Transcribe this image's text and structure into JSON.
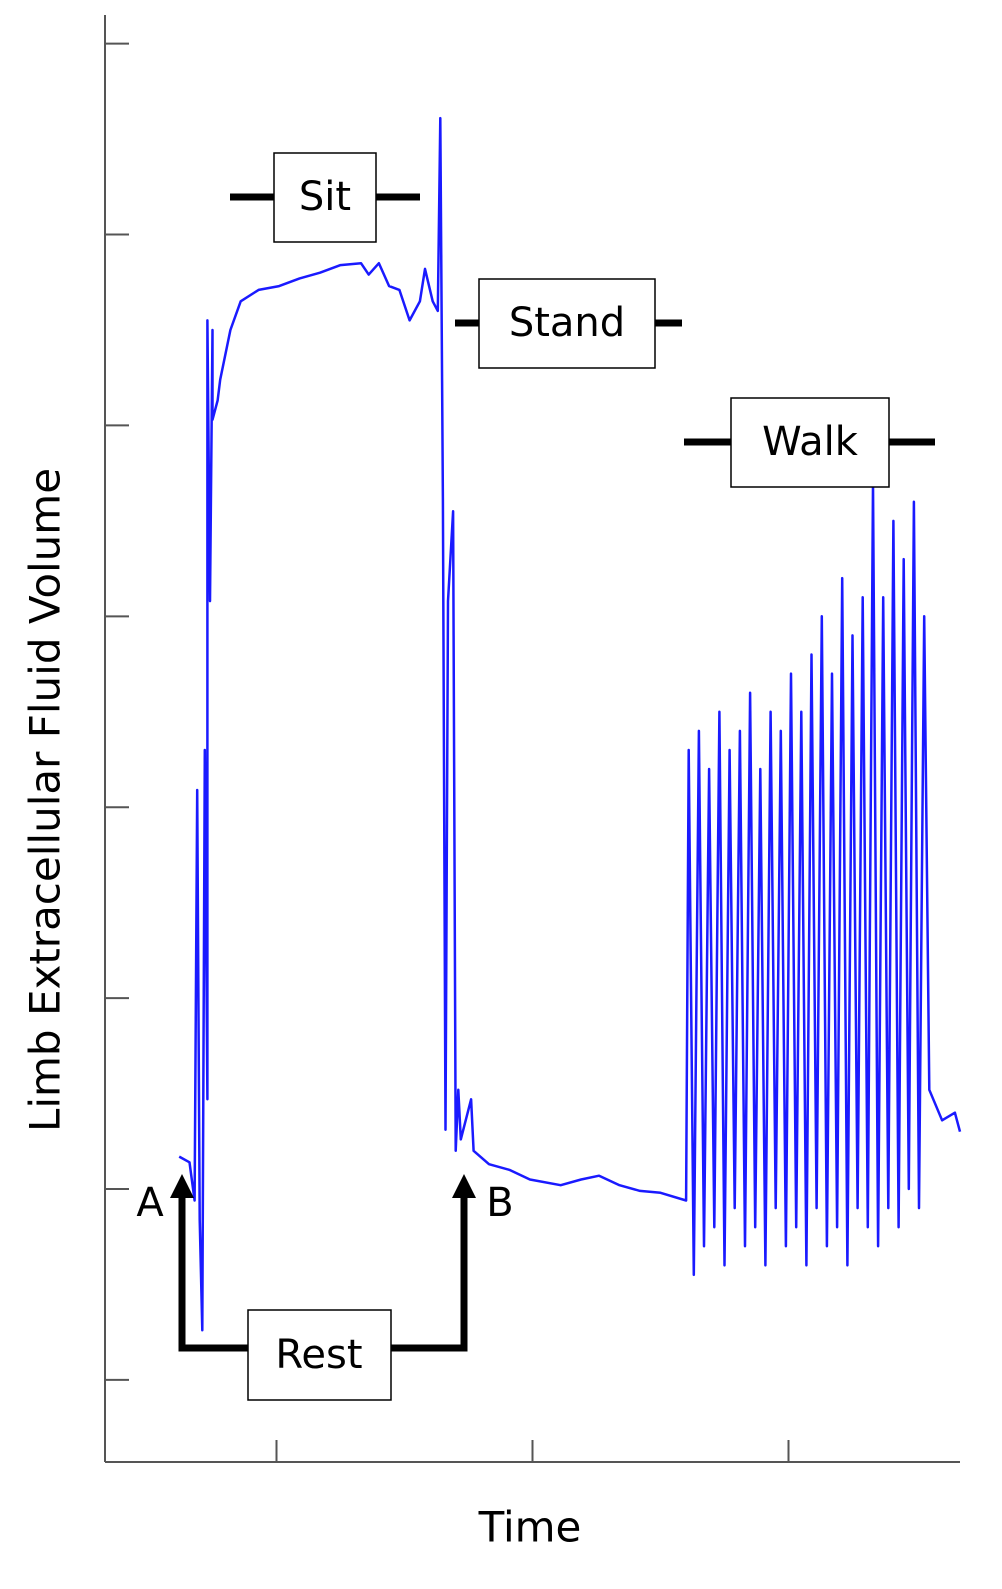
{
  "chart_data": {
    "type": "line",
    "x_label": "Time",
    "y_label": "Limb Extracellular Fluid Volume",
    "annotations": [
      "Sit",
      "Stand",
      "Walk",
      "Rest",
      "A",
      "B"
    ],
    "xlim": [
      0.33,
      3.67
    ],
    "xticks": [
      1,
      2,
      3
    ],
    "ylim": [
      -0.43,
      7.15
    ],
    "yticks": [
      0,
      1,
      2,
      3,
      4,
      5,
      6,
      7
    ],
    "series": [
      {
        "color": "#1a1aff",
        "x": [
          0.62,
          0.66,
          0.68,
          0.69,
          0.7,
          0.71,
          0.72,
          0.73,
          0.73,
          0.74,
          0.75,
          0.75,
          0.77,
          0.78,
          0.82,
          0.86,
          0.93,
          1.01,
          1.09,
          1.17,
          1.25,
          1.33,
          1.36,
          1.4,
          1.44,
          1.48,
          1.52,
          1.56,
          1.58,
          1.61,
          1.63,
          1.64,
          1.65,
          1.66,
          1.67,
          1.69,
          1.7,
          1.71,
          1.72,
          1.76,
          1.77,
          1.83,
          1.91,
          1.99,
          2.11,
          2.19,
          2.26,
          2.34,
          2.42,
          2.5,
          2.6,
          2.61,
          2.63,
          2.65,
          2.67,
          2.69,
          2.71,
          2.73,
          2.75,
          2.77,
          2.79,
          2.81,
          2.83,
          2.85,
          2.87,
          2.89,
          2.91,
          2.93,
          2.95,
          2.97,
          2.99,
          3.01,
          3.03,
          3.05,
          3.07,
          3.09,
          3.11,
          3.13,
          3.15,
          3.17,
          3.19,
          3.21,
          3.23,
          3.25,
          3.27,
          3.29,
          3.31,
          3.33,
          3.35,
          3.37,
          3.39,
          3.41,
          3.43,
          3.45,
          3.47,
          3.49,
          3.51,
          3.53,
          3.55,
          3.6,
          3.65,
          3.67
        ],
        "values": [
          1.17,
          1.14,
          0.94,
          3.09,
          0.84,
          0.26,
          3.3,
          1.47,
          5.55,
          4.08,
          5.5,
          5.03,
          5.13,
          5.24,
          5.5,
          5.65,
          5.71,
          5.73,
          5.77,
          5.8,
          5.84,
          5.85,
          5.79,
          5.85,
          5.73,
          5.71,
          5.55,
          5.65,
          5.82,
          5.65,
          5.6,
          6.61,
          4.61,
          1.31,
          4.08,
          4.55,
          1.2,
          1.52,
          1.26,
          1.47,
          1.2,
          1.13,
          1.1,
          1.05,
          1.02,
          1.05,
          1.07,
          1.02,
          0.99,
          0.98,
          0.94,
          3.3,
          0.55,
          3.4,
          0.7,
          3.2,
          0.8,
          3.5,
          0.6,
          3.3,
          0.9,
          3.4,
          0.7,
          3.6,
          0.8,
          3.2,
          0.6,
          3.5,
          0.9,
          3.4,
          0.7,
          3.7,
          0.8,
          3.5,
          0.6,
          3.8,
          0.9,
          4.0,
          0.7,
          3.7,
          0.8,
          4.2,
          0.6,
          3.9,
          0.9,
          4.1,
          0.8,
          4.7,
          0.7,
          4.1,
          0.9,
          4.5,
          0.8,
          4.3,
          1.0,
          4.6,
          0.9,
          4.0,
          1.52,
          1.36,
          1.4,
          1.3
        ]
      }
    ]
  }
}
